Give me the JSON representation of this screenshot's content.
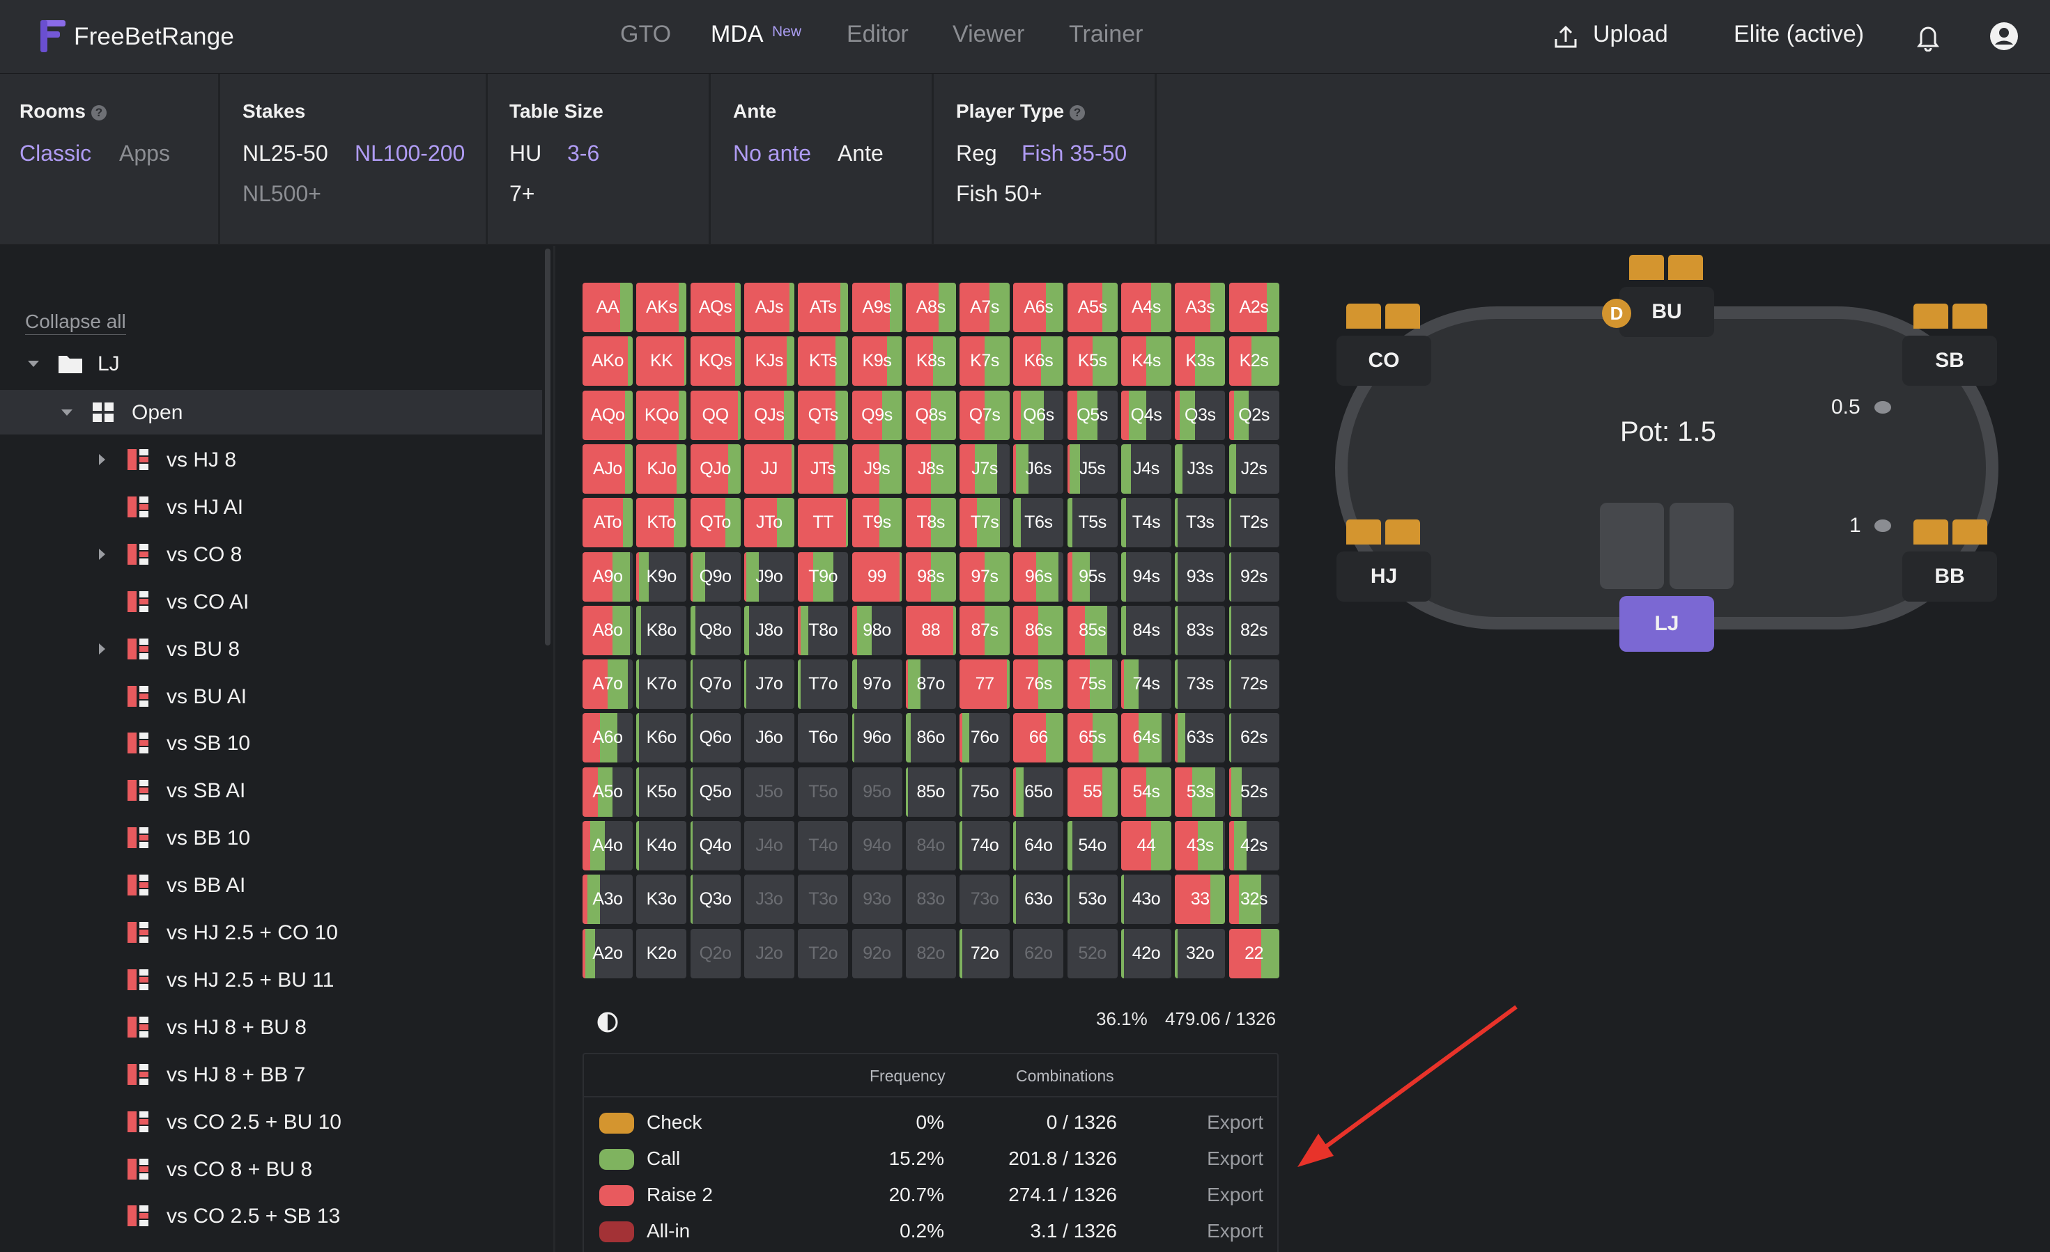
{
  "app": {
    "title": "FreeBetRange"
  },
  "nav": {
    "tabs": [
      {
        "label": "GTO",
        "active": false
      },
      {
        "label": "MDA",
        "active": true,
        "badge": "New"
      },
      {
        "label": "Editor",
        "active": false
      },
      {
        "label": "Viewer",
        "active": false
      },
      {
        "label": "Trainer",
        "active": false
      }
    ],
    "upload": "Upload",
    "plan": "Elite (active)"
  },
  "filters": {
    "rooms": {
      "title": "Rooms",
      "options": [
        "Classic",
        "Apps"
      ],
      "selected": "Classic"
    },
    "stakes": {
      "title": "Stakes",
      "options": [
        "NL25-50",
        "NL100-200",
        "NL500+"
      ],
      "selected": "NL100-200"
    },
    "table_size": {
      "title": "Table Size",
      "options": [
        "HU",
        "3-6",
        "7+"
      ],
      "selected": "3-6"
    },
    "ante": {
      "title": "Ante",
      "options": [
        "No ante",
        "Ante"
      ],
      "selected": "No ante"
    },
    "player_type": {
      "title": "Player Type",
      "options": [
        "Reg",
        "Fish 35-50",
        "Fish 50+"
      ],
      "selected": "Fish 35-50"
    }
  },
  "sidebar": {
    "collapse_all": "Collapse all",
    "root": "LJ",
    "open": "Open",
    "items": [
      {
        "label": "vs HJ 8",
        "expandable": true
      },
      {
        "label": "vs HJ AI",
        "expandable": false
      },
      {
        "label": "vs CO 8",
        "expandable": true
      },
      {
        "label": "vs CO AI",
        "expandable": false
      },
      {
        "label": "vs BU 8",
        "expandable": true
      },
      {
        "label": "vs BU AI",
        "expandable": false
      },
      {
        "label": "vs SB 10",
        "expandable": false
      },
      {
        "label": "vs SB AI",
        "expandable": false
      },
      {
        "label": "vs BB 10",
        "expandable": false
      },
      {
        "label": "vs BB AI",
        "expandable": false
      },
      {
        "label": "vs HJ 2.5 + CO 10",
        "expandable": false
      },
      {
        "label": "vs HJ 2.5 + BU 11",
        "expandable": false
      },
      {
        "label": "vs HJ 8 + BU 8",
        "expandable": false
      },
      {
        "label": "vs HJ 8 + BB 7",
        "expandable": false
      },
      {
        "label": "vs CO 2.5 + BU 10",
        "expandable": false
      },
      {
        "label": "vs CO 8 + BU 8",
        "expandable": false
      },
      {
        "label": "vs CO 2.5 + SB 13",
        "expandable": false
      }
    ]
  },
  "colors": {
    "check": "#d4952f",
    "call": "#7fb35f",
    "raise": "#e85a5e",
    "allin": "#a33236",
    "empty": "#3b3d42",
    "accent": "#b09cf4"
  },
  "range": {
    "rows": [
      [
        {
          "h": "AA",
          "c": 0.25,
          "r": 0.75
        },
        {
          "h": "AKs",
          "c": 0.15,
          "r": 0.85
        },
        {
          "h": "AQs",
          "c": 0.1,
          "r": 0.9
        },
        {
          "h": "AJs",
          "c": 0.1,
          "r": 0.9
        },
        {
          "h": "ATs",
          "c": 0.15,
          "r": 0.85
        },
        {
          "h": "A9s",
          "c": 0.25,
          "r": 0.75
        },
        {
          "h": "A8s",
          "c": 0.35,
          "r": 0.65
        },
        {
          "h": "A7s",
          "c": 0.4,
          "r": 0.6
        },
        {
          "h": "A6s",
          "c": 0.35,
          "r": 0.65
        },
        {
          "h": "A5s",
          "c": 0.3,
          "r": 0.7
        },
        {
          "h": "A4s",
          "c": 0.4,
          "r": 0.6
        },
        {
          "h": "A3s",
          "c": 0.3,
          "r": 0.7
        },
        {
          "h": "A2s",
          "c": 0.25,
          "r": 0.75
        }
      ],
      [
        {
          "h": "AKo",
          "c": 0.1,
          "r": 0.9
        },
        {
          "h": "KK",
          "c": 0.05,
          "r": 0.95
        },
        {
          "h": "KQs",
          "c": 0.1,
          "r": 0.9
        },
        {
          "h": "KJs",
          "c": 0.15,
          "r": 0.85
        },
        {
          "h": "KTs",
          "c": 0.25,
          "r": 0.75
        },
        {
          "h": "K9s",
          "c": 0.3,
          "r": 0.7
        },
        {
          "h": "K8s",
          "c": 0.45,
          "r": 0.55
        },
        {
          "h": "K7s",
          "c": 0.5,
          "r": 0.5
        },
        {
          "h": "K6s",
          "c": 0.45,
          "r": 0.55
        },
        {
          "h": "K5s",
          "c": 0.5,
          "r": 0.5
        },
        {
          "h": "K4s",
          "c": 0.5,
          "r": 0.5
        },
        {
          "h": "K3s",
          "c": 0.6,
          "r": 0.4
        },
        {
          "h": "K2s",
          "c": 0.55,
          "r": 0.45
        }
      ],
      [
        {
          "h": "AQo",
          "c": 0.15,
          "r": 0.85
        },
        {
          "h": "KQo",
          "c": 0.15,
          "r": 0.85
        },
        {
          "h": "QQ",
          "c": 0.05,
          "r": 0.95
        },
        {
          "h": "QJs",
          "c": 0.2,
          "r": 0.8
        },
        {
          "h": "QTs",
          "c": 0.25,
          "r": 0.75
        },
        {
          "h": "Q9s",
          "c": 0.4,
          "r": 0.6
        },
        {
          "h": "Q8s",
          "c": 0.5,
          "r": 0.5
        },
        {
          "h": "Q7s",
          "c": 0.5,
          "r": 0.5
        },
        {
          "h": "Q6s",
          "c": 0.45,
          "r": 0.15
        },
        {
          "h": "Q5s",
          "c": 0.4,
          "r": 0.2
        },
        {
          "h": "Q4s",
          "c": 0.35,
          "r": 0.15
        },
        {
          "h": "Q3s",
          "c": 0.3,
          "r": 0.1
        },
        {
          "h": "Q2s",
          "c": 0.3,
          "r": 0.1
        }
      ],
      [
        {
          "h": "AJo",
          "c": 0.15,
          "r": 0.85
        },
        {
          "h": "KJo",
          "c": 0.2,
          "r": 0.8
        },
        {
          "h": "QJo",
          "c": 0.25,
          "r": 0.75
        },
        {
          "h": "JJ",
          "c": 0.05,
          "r": 0.95
        },
        {
          "h": "JTs",
          "c": 0.3,
          "r": 0.7
        },
        {
          "h": "J9s",
          "c": 0.45,
          "r": 0.55
        },
        {
          "h": "J8s",
          "c": 0.5,
          "r": 0.5
        },
        {
          "h": "J7s",
          "c": 0.45,
          "r": 0.3
        },
        {
          "h": "J6s",
          "c": 0.25,
          "r": 0.05
        },
        {
          "h": "J5s",
          "c": 0.2,
          "r": 0.05
        },
        {
          "h": "J4s",
          "c": 0.2,
          "r": 0.0
        },
        {
          "h": "J3s",
          "c": 0.15,
          "r": 0.0
        },
        {
          "h": "J2s",
          "c": 0.15,
          "r": 0.0
        }
      ],
      [
        {
          "h": "ATo",
          "c": 0.2,
          "r": 0.8
        },
        {
          "h": "KTo",
          "c": 0.25,
          "r": 0.75
        },
        {
          "h": "QTo",
          "c": 0.3,
          "r": 0.7
        },
        {
          "h": "JTo",
          "c": 0.35,
          "r": 0.65
        },
        {
          "h": "TT",
          "c": 0.05,
          "r": 0.95
        },
        {
          "h": "T9s",
          "c": 0.45,
          "r": 0.55
        },
        {
          "h": "T8s",
          "c": 0.5,
          "r": 0.5
        },
        {
          "h": "T7s",
          "c": 0.45,
          "r": 0.35
        },
        {
          "h": "T6s",
          "c": 0.15,
          "r": 0.0
        },
        {
          "h": "T5s",
          "c": 0.1,
          "r": 0.0
        },
        {
          "h": "T4s",
          "c": 0.1,
          "r": 0.0
        },
        {
          "h": "T3s",
          "c": 0.05,
          "r": 0.0
        },
        {
          "h": "T2s",
          "c": 0.05,
          "r": 0.0
        }
      ],
      [
        {
          "h": "A9o",
          "c": 0.35,
          "r": 0.6
        },
        {
          "h": "K9o",
          "c": 0.2,
          "r": 0.05
        },
        {
          "h": "Q9o",
          "c": 0.25,
          "r": 0.05
        },
        {
          "h": "J9o",
          "c": 0.25,
          "r": 0.05
        },
        {
          "h": "T9o",
          "c": 0.4,
          "r": 0.3
        },
        {
          "h": "99",
          "c": 0.05,
          "r": 0.95
        },
        {
          "h": "98s",
          "c": 0.5,
          "r": 0.5
        },
        {
          "h": "97s",
          "c": 0.5,
          "r": 0.5
        },
        {
          "h": "96s",
          "c": 0.45,
          "r": 0.45
        },
        {
          "h": "95s",
          "c": 0.35,
          "r": 0.1
        },
        {
          "h": "94s",
          "c": 0.1,
          "r": 0.0
        },
        {
          "h": "93s",
          "c": 0.05,
          "r": 0.0
        },
        {
          "h": "92s",
          "c": 0.05,
          "r": 0.0
        }
      ],
      [
        {
          "h": "A8o",
          "c": 0.35,
          "r": 0.6
        },
        {
          "h": "K8o",
          "c": 0.1,
          "r": 0.0
        },
        {
          "h": "Q8o",
          "c": 0.1,
          "r": 0.0
        },
        {
          "h": "J8o",
          "c": 0.1,
          "r": 0.0
        },
        {
          "h": "T8o",
          "c": 0.15,
          "r": 0.05
        },
        {
          "h": "98o",
          "c": 0.3,
          "r": 0.1
        },
        {
          "h": "88",
          "c": 0.05,
          "r": 0.95
        },
        {
          "h": "87s",
          "c": 0.5,
          "r": 0.5
        },
        {
          "h": "86s",
          "c": 0.5,
          "r": 0.5
        },
        {
          "h": "85s",
          "c": 0.45,
          "r": 0.35
        },
        {
          "h": "84s",
          "c": 0.1,
          "r": 0.0
        },
        {
          "h": "83s",
          "c": 0.05,
          "r": 0.0
        },
        {
          "h": "82s",
          "c": 0.05,
          "r": 0.0
        }
      ],
      [
        {
          "h": "A7o",
          "c": 0.4,
          "r": 0.5
        },
        {
          "h": "K7o",
          "c": 0.05,
          "r": 0.0
        },
        {
          "h": "Q7o",
          "c": 0.05,
          "r": 0.0
        },
        {
          "h": "J7o",
          "c": 0.05,
          "r": 0.0
        },
        {
          "h": "T7o",
          "c": 0.05,
          "r": 0.0
        },
        {
          "h": "97o",
          "c": 0.1,
          "r": 0.0
        },
        {
          "h": "87o",
          "c": 0.25,
          "r": 0.05
        },
        {
          "h": "77",
          "c": 0.05,
          "r": 0.95
        },
        {
          "h": "76s",
          "c": 0.5,
          "r": 0.5
        },
        {
          "h": "75s",
          "c": 0.45,
          "r": 0.45
        },
        {
          "h": "74s",
          "c": 0.3,
          "r": 0.05
        },
        {
          "h": "73s",
          "c": 0.05,
          "r": 0.0
        },
        {
          "h": "72s",
          "c": 0.05,
          "r": 0.0
        }
      ],
      [
        {
          "h": "A6o",
          "c": 0.35,
          "r": 0.35
        },
        {
          "h": "K6o",
          "c": 0.05,
          "r": 0.0
        },
        {
          "h": "Q6o",
          "c": 0.05,
          "r": 0.0
        },
        {
          "h": "J6o",
          "c": 0.0,
          "r": 0.0
        },
        {
          "h": "T6o",
          "c": 0.0,
          "r": 0.0
        },
        {
          "h": "96o",
          "c": 0.05,
          "r": 0.0
        },
        {
          "h": "86o",
          "c": 0.1,
          "r": 0.0
        },
        {
          "h": "76o",
          "c": 0.15,
          "r": 0.05
        },
        {
          "h": "66",
          "c": 0.35,
          "r": 0.65
        },
        {
          "h": "65s",
          "c": 0.5,
          "r": 0.5
        },
        {
          "h": "64s",
          "c": 0.45,
          "r": 0.35
        },
        {
          "h": "63s",
          "c": 0.15,
          "r": 0.05
        },
        {
          "h": "62s",
          "c": 0.05,
          "r": 0.0
        }
      ],
      [
        {
          "h": "A5o",
          "c": 0.3,
          "r": 0.3
        },
        {
          "h": "K5o",
          "c": 0.05,
          "r": 0.0
        },
        {
          "h": "Q5o",
          "c": 0.05,
          "r": 0.0
        },
        {
          "h": "J5o",
          "c": 0.0,
          "r": 0.0,
          "dim": true
        },
        {
          "h": "T5o",
          "c": 0.0,
          "r": 0.0,
          "dim": true
        },
        {
          "h": "95o",
          "c": 0.0,
          "r": 0.0,
          "dim": true
        },
        {
          "h": "85o",
          "c": 0.05,
          "r": 0.0
        },
        {
          "h": "75o",
          "c": 0.05,
          "r": 0.0
        },
        {
          "h": "65o",
          "c": 0.15,
          "r": 0.05
        },
        {
          "h": "55",
          "c": 0.3,
          "r": 0.7
        },
        {
          "h": "54s",
          "c": 0.5,
          "r": 0.5
        },
        {
          "h": "53s",
          "c": 0.45,
          "r": 0.35
        },
        {
          "h": "52s",
          "c": 0.2,
          "r": 0.05
        }
      ],
      [
        {
          "h": "A4o",
          "c": 0.3,
          "r": 0.15
        },
        {
          "h": "K4o",
          "c": 0.05,
          "r": 0.0
        },
        {
          "h": "Q4o",
          "c": 0.05,
          "r": 0.0
        },
        {
          "h": "J4o",
          "c": 0.0,
          "r": 0.0,
          "dim": true
        },
        {
          "h": "T4o",
          "c": 0.0,
          "r": 0.0,
          "dim": true
        },
        {
          "h": "94o",
          "c": 0.0,
          "r": 0.0,
          "dim": true
        },
        {
          "h": "84o",
          "c": 0.0,
          "r": 0.0,
          "dim": true
        },
        {
          "h": "74o",
          "c": 0.05,
          "r": 0.0
        },
        {
          "h": "64o",
          "c": 0.05,
          "r": 0.0
        },
        {
          "h": "54o",
          "c": 0.1,
          "r": 0.0
        },
        {
          "h": "44",
          "c": 0.4,
          "r": 0.6
        },
        {
          "h": "43s",
          "c": 0.5,
          "r": 0.45
        },
        {
          "h": "42s",
          "c": 0.25,
          "r": 0.1
        }
      ],
      [
        {
          "h": "A3o",
          "c": 0.25,
          "r": 0.1
        },
        {
          "h": "K3o",
          "c": 0.0,
          "r": 0.0
        },
        {
          "h": "Q3o",
          "c": 0.05,
          "r": 0.0
        },
        {
          "h": "J3o",
          "c": 0.0,
          "r": 0.0,
          "dim": true
        },
        {
          "h": "T3o",
          "c": 0.0,
          "r": 0.0,
          "dim": true
        },
        {
          "h": "93o",
          "c": 0.0,
          "r": 0.0,
          "dim": true
        },
        {
          "h": "83o",
          "c": 0.0,
          "r": 0.0,
          "dim": true
        },
        {
          "h": "73o",
          "c": 0.0,
          "r": 0.0,
          "dim": true
        },
        {
          "h": "63o",
          "c": 0.05,
          "r": 0.0
        },
        {
          "h": "53o",
          "c": 0.05,
          "r": 0.0
        },
        {
          "h": "43o",
          "c": 0.05,
          "r": 0.0
        },
        {
          "h": "33",
          "c": 0.3,
          "r": 0.7
        },
        {
          "h": "32s",
          "c": 0.45,
          "r": 0.2
        }
      ],
      [
        {
          "h": "A2o",
          "c": 0.2,
          "r": 0.05
        },
        {
          "h": "K2o",
          "c": 0.0,
          "r": 0.0
        },
        {
          "h": "Q2o",
          "c": 0.0,
          "r": 0.0,
          "dim": true
        },
        {
          "h": "J2o",
          "c": 0.0,
          "r": 0.0,
          "dim": true
        },
        {
          "h": "T2o",
          "c": 0.0,
          "r": 0.0,
          "dim": true
        },
        {
          "h": "92o",
          "c": 0.0,
          "r": 0.0,
          "dim": true
        },
        {
          "h": "82o",
          "c": 0.0,
          "r": 0.0,
          "dim": true
        },
        {
          "h": "72o",
          "c": 0.05,
          "r": 0.0
        },
        {
          "h": "62o",
          "c": 0.0,
          "r": 0.0,
          "dim": true
        },
        {
          "h": "52o",
          "c": 0.0,
          "r": 0.0,
          "dim": true
        },
        {
          "h": "42o",
          "c": 0.05,
          "r": 0.0
        },
        {
          "h": "32o",
          "c": 0.05,
          "r": 0.0
        },
        {
          "h": "22",
          "c": 0.35,
          "r": 0.65
        }
      ]
    ],
    "percent": "36.1%",
    "combos": "479.06 / 1326"
  },
  "legend": {
    "head_frequency": "Frequency",
    "head_combinations": "Combinations",
    "rows": [
      {
        "name": "Check",
        "freq": "0%",
        "comb": "0 / 1326",
        "export": "Export",
        "color_key": "check"
      },
      {
        "name": "Call",
        "freq": "15.2%",
        "comb": "201.8 / 1326",
        "export": "Export",
        "color_key": "call"
      },
      {
        "name": "Raise 2",
        "freq": "20.7%",
        "comb": "274.1 / 1326",
        "export": "Export",
        "color_key": "raise"
      },
      {
        "name": "All-in",
        "freq": "0.2%",
        "comb": "3.1 / 1326",
        "export": "Export",
        "color_key": "allin"
      }
    ]
  },
  "table": {
    "pot": "Pot: 1.5",
    "dealer": "D",
    "seats": {
      "bu": "BU",
      "co": "CO",
      "sb": "SB",
      "hj": "HJ",
      "bb": "BB",
      "lj": "LJ"
    },
    "bets": {
      "sb": "0.5",
      "bb": "1"
    }
  }
}
